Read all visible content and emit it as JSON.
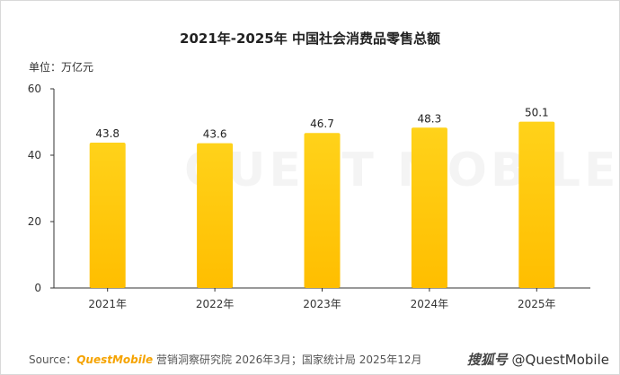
{
  "chart_title": "2021年-2025年 中国社会消费品零售总额",
  "unit_label": "单位：万亿元",
  "source": {
    "prefix": "Source：",
    "brand": "QuestMobile",
    "rest": " 营销洞察研究院 2026年3月；国家统计局 2025年12月"
  },
  "credit": {
    "platform": "搜狐号",
    "handle": " @QuestMobile"
  },
  "watermark": "QUEST MOBILE",
  "colors": {
    "bar_top": "#ffd21a",
    "bar_bottom": "#ffbe00",
    "axis": "#333333",
    "grid": "#cccccc"
  },
  "chart_data": {
    "type": "bar",
    "title": "2021年-2025年 中国社会消费品零售总额",
    "ylabel": "单位：万亿元",
    "xlabel": "",
    "categories": [
      "2021年",
      "2022年",
      "2023年",
      "2024年",
      "2025年"
    ],
    "values": [
      43.8,
      43.6,
      46.7,
      48.3,
      50.1
    ],
    "value_labels": [
      "43.8",
      "43.6",
      "46.7",
      "48.3",
      "50.1"
    ],
    "ylim": [
      0,
      60
    ],
    "yticks": [
      0,
      20,
      40,
      60
    ],
    "grid": false,
    "legend": "none"
  }
}
